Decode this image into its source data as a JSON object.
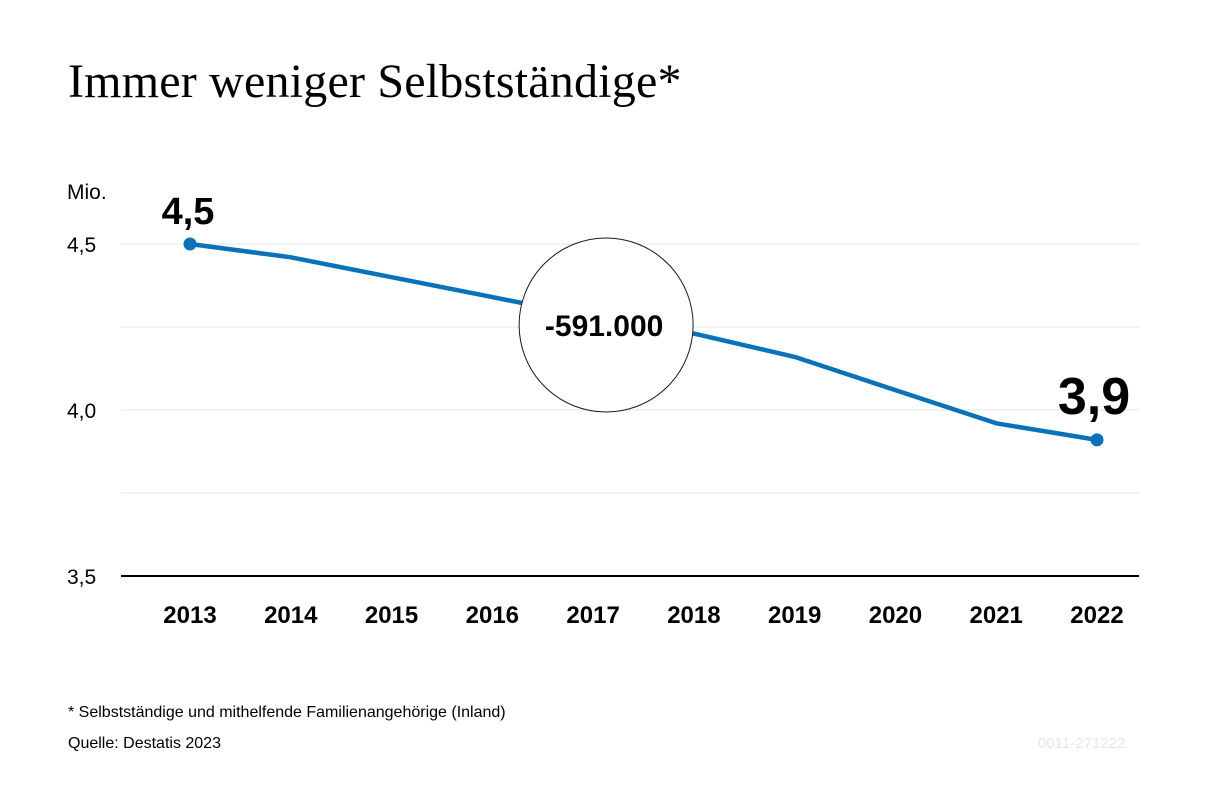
{
  "colors": {
    "line": "#0a72b8",
    "grid": "#e6e6e6",
    "axis": "#000000",
    "text": "#000000",
    "code": "#e2e6ee"
  },
  "footnote": "* Selbstständige und mithelfende Familienangehörige (Inland)",
  "source": "Quelle: Destatis 2023",
  "graphic_code": "0011-271222",
  "chart_data": {
    "type": "line",
    "title": "Immer weniger Selbstständige*",
    "unit_label": "Mio.",
    "x": [
      "2013",
      "2014",
      "2015",
      "2016",
      "2017",
      "2018",
      "2019",
      "2020",
      "2021",
      "2022"
    ],
    "series": [
      {
        "values": [
          4.5,
          4.46,
          4.4,
          4.34,
          4.28,
          4.23,
          4.16,
          4.06,
          3.96,
          3.91
        ]
      }
    ],
    "ylim": [
      3.5,
      4.6
    ],
    "yticks": [
      {
        "value": 3.5,
        "label": "3,5"
      },
      {
        "value": 4.0,
        "label": "4,0"
      },
      {
        "value": 4.5,
        "label": "4,5"
      }
    ],
    "gridlines": [
      3.75,
      4.0,
      4.25,
      4.5
    ],
    "grid": true,
    "legend": "none",
    "data_labels": [
      {
        "x": "2013",
        "label": "4,5",
        "size": "medium"
      },
      {
        "x": "2022",
        "label": "3,9",
        "size": "large"
      }
    ],
    "annotation": {
      "text": "-591.000",
      "x": "2017",
      "y": 4.25
    }
  }
}
